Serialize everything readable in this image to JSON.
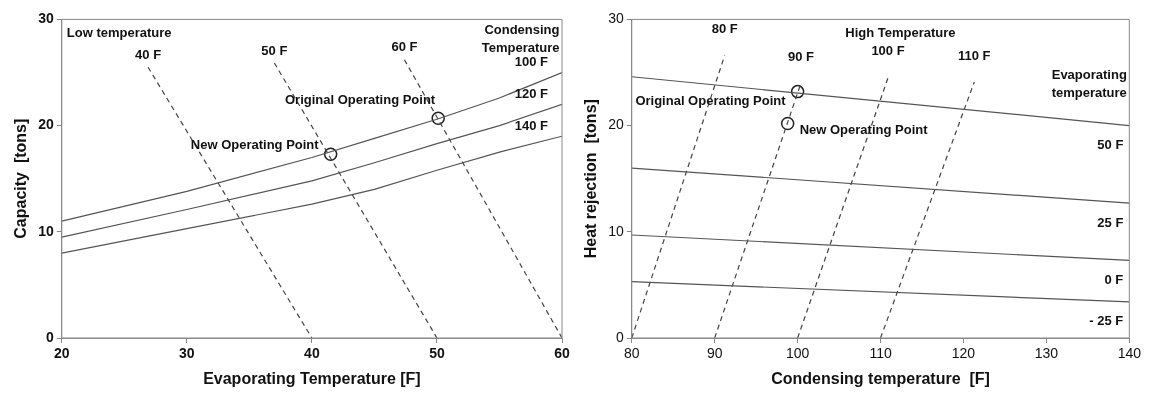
{
  "chart_data": [
    {
      "type": "line",
      "xlabel": "Evaporating Temperature [F]",
      "ylabel": "Capacity  [tons]",
      "xlim": [
        20,
        60
      ],
      "ylim": [
        0,
        30
      ],
      "xticks": [
        20,
        30,
        40,
        50,
        60
      ],
      "yticks": [
        0,
        10,
        20,
        30
      ],
      "marker": "none",
      "annotations": [
        "Low temperature",
        "Condensing Temperature"
      ],
      "series": [
        {
          "name": "100 F",
          "color": "#555555",
          "line_style": "solid",
          "x": [
            20,
            30,
            40,
            45,
            50,
            55,
            60
          ],
          "values": [
            11,
            13.8,
            17,
            18.8,
            20.6,
            22.6,
            25
          ]
        },
        {
          "name": "120 F",
          "color": "#555555",
          "line_style": "solid",
          "x": [
            20,
            30,
            40,
            45,
            50,
            55,
            60
          ],
          "values": [
            9.5,
            12.1,
            14.8,
            16.5,
            18.3,
            20,
            22
          ]
        },
        {
          "name": "140 F",
          "color": "#555555",
          "line_style": "solid",
          "x": [
            20,
            30,
            40,
            45,
            50,
            55,
            60
          ],
          "values": [
            8,
            10.3,
            12.6,
            14,
            15.8,
            17.5,
            19
          ]
        },
        {
          "name": "40 F",
          "color": "#444444",
          "line_style": "dashed",
          "x": [
            26.9,
            40
          ],
          "values": [
            25.5,
            0
          ]
        },
        {
          "name": "50 F",
          "color": "#444444",
          "line_style": "dashed",
          "x": [
            37,
            50
          ],
          "values": [
            25.9,
            0
          ]
        },
        {
          "name": "60 F",
          "color": "#444444",
          "line_style": "dashed",
          "x": [
            47.4,
            60
          ],
          "values": [
            26.2,
            0
          ]
        },
        {
          "name": "Original Operating Point",
          "type": "scatter",
          "marker": "circle",
          "color": "#222222",
          "x": [
            50.1
          ],
          "values": [
            20.7
          ]
        },
        {
          "name": "New Operating Point",
          "type": "scatter",
          "marker": "circle",
          "color": "#222222",
          "x": [
            41.5
          ],
          "values": [
            17.3
          ]
        }
      ]
    },
    {
      "type": "line",
      "xlabel": "Condensing temperature  [F]",
      "ylabel": "Heat rejection  [tons]",
      "xlim": [
        80,
        140
      ],
      "ylim": [
        0,
        30
      ],
      "xticks": [
        80,
        90,
        100,
        110,
        120,
        130,
        140
      ],
      "yticks": [
        0,
        10,
        20,
        30
      ],
      "marker": "none",
      "annotations": [
        "High Temperature",
        "Evaporating temperature"
      ],
      "series": [
        {
          "name": "50 F",
          "color": "#555555",
          "line_style": "solid",
          "x": [
            80,
            140
          ],
          "values": [
            24.6,
            20
          ]
        },
        {
          "name": "25 F",
          "color": "#555555",
          "line_style": "solid",
          "x": [
            80,
            140
          ],
          "values": [
            16,
            12.7
          ]
        },
        {
          "name": "0 F",
          "color": "#555555",
          "line_style": "solid",
          "x": [
            80,
            140
          ],
          "values": [
            9.7,
            7.3
          ]
        },
        {
          "name": "- 25 F",
          "color": "#555555",
          "line_style": "solid",
          "x": [
            80,
            140
          ],
          "values": [
            5.3,
            3.4
          ]
        },
        {
          "name": "80 F",
          "color": "#444444",
          "line_style": "dashed",
          "x": [
            80,
            91.2
          ],
          "values": [
            0,
            26.6
          ]
        },
        {
          "name": "90 F",
          "color": "#444444",
          "line_style": "dashed",
          "x": [
            90,
            100.4
          ],
          "values": [
            0,
            24
          ]
        },
        {
          "name": "100 F",
          "color": "#444444",
          "line_style": "dashed",
          "x": [
            100,
            110.9
          ],
          "values": [
            0,
            24.5
          ]
        },
        {
          "name": "110 F",
          "color": "#444444",
          "line_style": "dashed",
          "x": [
            110,
            121.3
          ],
          "values": [
            0,
            24.1
          ]
        },
        {
          "name": "Original Operating Point",
          "type": "scatter",
          "marker": "circle",
          "color": "#222222",
          "x": [
            100
          ],
          "values": [
            23.2
          ]
        },
        {
          "name": "New Operating Point",
          "type": "scatter",
          "marker": "circle",
          "color": "#222222",
          "x": [
            98.8
          ],
          "values": [
            20.2
          ]
        }
      ]
    }
  ]
}
